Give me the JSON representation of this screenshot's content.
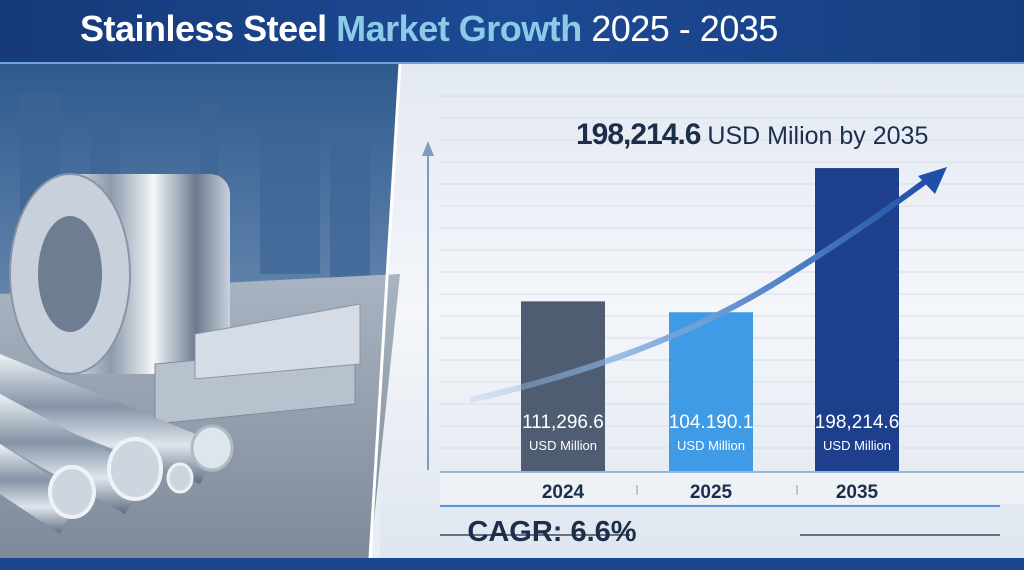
{
  "header": {
    "title_part1": "Stainless Steel",
    "title_part2": "Market Growth",
    "title_part3": "2025 - 2035"
  },
  "headline": {
    "value": "198,214.6",
    "suffix": "USD Milion by 2035"
  },
  "cagr_label": "CAGR: 6.6%",
  "colors": {
    "header_bg": "#1d4a94",
    "title_accent": "#8ccbe8",
    "bar_2024": "#4f5d72",
    "bar_2025": "#3f9be6",
    "bar_2035": "#1d3f8c",
    "trend_arrow": "#1f4fa8"
  },
  "chart_data": {
    "type": "bar",
    "categories": [
      "2024",
      "2025",
      "2035"
    ],
    "values": [
      111296.6,
      104190.1,
      198214.6
    ],
    "value_labels": [
      "111,296.6",
      "104.190.1",
      "198,214.6"
    ],
    "unit_label": "USD Million",
    "title": "",
    "xlabel": "",
    "ylabel": "",
    "ylim": [
      0,
      210000
    ],
    "grid": true,
    "trend_arrow": true
  }
}
